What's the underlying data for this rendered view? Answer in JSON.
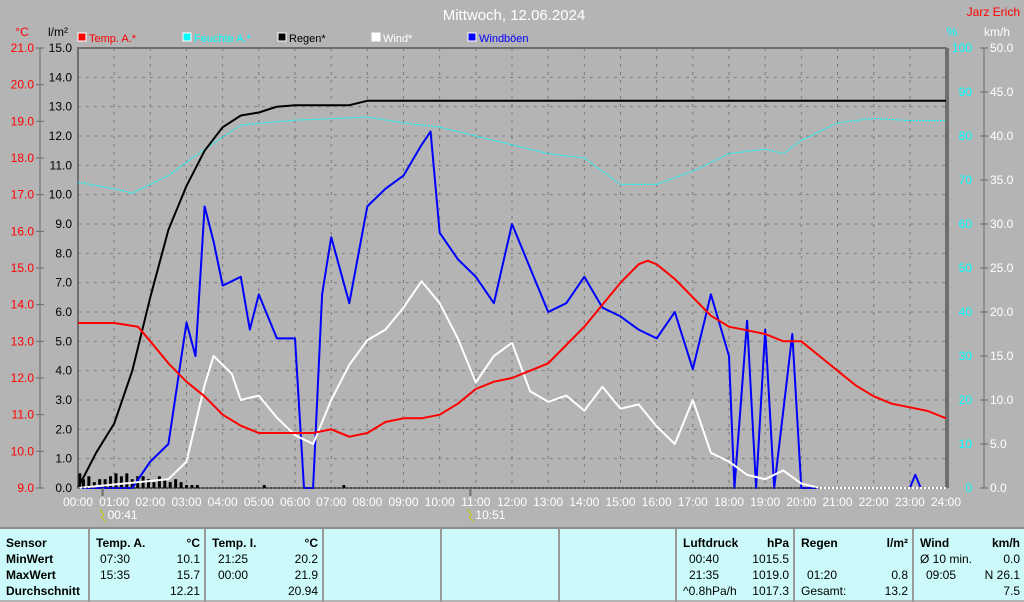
{
  "title": "Mittwoch, 12.06.2024",
  "author": "Jarz Erich",
  "colors": {
    "temp": "#ff0000",
    "humidity": "#00ffff",
    "rain": "#000000",
    "wind": "#ffffff",
    "gust": "#0000ff"
  },
  "chart_data": {
    "type": "line",
    "title": "Mittwoch, 12.06.2024",
    "legend": [
      "Temp. A.*",
      "Feuchte A.*",
      "Regen*",
      "Wind*",
      "Windböen"
    ],
    "legend_position": "top",
    "axes": {
      "temp": {
        "unit": "°C",
        "range": [
          9,
          21
        ],
        "ticks": [
          "21.0",
          "20.0",
          "19.0",
          "18.0",
          "17.0",
          "16.0",
          "15.0",
          "14.0",
          "13.0",
          "12.0",
          "11.0",
          "10.0",
          "9.0"
        ]
      },
      "rain": {
        "unit": "l/m²",
        "range": [
          0,
          15
        ],
        "ticks": [
          "15.0",
          "14.0",
          "13.0",
          "12.0",
          "11.0",
          "10.0",
          "9.0",
          "8.0",
          "7.0",
          "6.0",
          "5.0",
          "4.0",
          "3.0",
          "2.0",
          "1.0",
          "0.0"
        ]
      },
      "humidity": {
        "unit": "%",
        "range": [
          0,
          100
        ],
        "ticks": [
          "100",
          "90",
          "80",
          "70",
          "60",
          "50",
          "40",
          "30",
          "20",
          "10",
          "0"
        ]
      },
      "wind": {
        "unit": "km/h",
        "range": [
          0,
          50
        ],
        "ticks": [
          "50.0",
          "45.0",
          "40.0",
          "35.0",
          "30.0",
          "25.0",
          "20.0",
          "15.0",
          "10.0",
          "5.0",
          "0.0"
        ]
      },
      "x": {
        "range": [
          0,
          24
        ],
        "ticks": [
          "00:00",
          "01:00",
          "02:00",
          "03:00",
          "04:00",
          "05:00",
          "06:00",
          "07:00",
          "08:00",
          "09:00",
          "10:00",
          "11:00",
          "12:00",
          "13:00",
          "14:00",
          "15:00",
          "16:00",
          "17:00",
          "18:00",
          "19:00",
          "20:00",
          "21:00",
          "22:00",
          "23:00",
          "24:00"
        ]
      }
    },
    "markers": [
      {
        "label": "00:41",
        "x": 0.68
      },
      {
        "label": "10:51",
        "x": 10.85
      }
    ],
    "series": [
      {
        "name": "Temp. A.*",
        "axis": "temp",
        "color": "#ff0000",
        "points": [
          [
            0,
            13.5
          ],
          [
            1,
            13.5
          ],
          [
            1.66,
            13.4
          ],
          [
            2,
            13.0
          ],
          [
            2.5,
            12.4
          ],
          [
            3,
            11.9
          ],
          [
            3.5,
            11.5
          ],
          [
            4,
            11.0
          ],
          [
            4.5,
            10.7
          ],
          [
            5,
            10.5
          ],
          [
            6,
            10.5
          ],
          [
            6.5,
            10.5
          ],
          [
            7,
            10.6
          ],
          [
            7.5,
            10.4
          ],
          [
            8,
            10.5
          ],
          [
            8.5,
            10.8
          ],
          [
            9,
            10.9
          ],
          [
            9.5,
            10.9
          ],
          [
            10,
            11.0
          ],
          [
            10.5,
            11.3
          ],
          [
            11,
            11.7
          ],
          [
            11.5,
            11.9
          ],
          [
            12,
            12.0
          ],
          [
            12.5,
            12.2
          ],
          [
            13,
            12.4
          ],
          [
            13.5,
            12.9
          ],
          [
            14,
            13.4
          ],
          [
            14.5,
            14.0
          ],
          [
            15,
            14.6
          ],
          [
            15.5,
            15.1
          ],
          [
            15.75,
            15.2
          ],
          [
            16,
            15.1
          ],
          [
            16.5,
            14.7
          ],
          [
            17,
            14.2
          ],
          [
            17.5,
            13.7
          ],
          [
            18,
            13.4
          ],
          [
            18.5,
            13.3
          ],
          [
            19,
            13.2
          ],
          [
            19.5,
            13.0
          ],
          [
            20,
            13.0
          ],
          [
            20.5,
            12.6
          ],
          [
            21,
            12.2
          ],
          [
            21.5,
            11.8
          ],
          [
            22,
            11.5
          ],
          [
            22.5,
            11.3
          ],
          [
            23,
            11.2
          ],
          [
            23.5,
            11.1
          ],
          [
            24,
            10.9
          ]
        ]
      },
      {
        "name": "Feuchte A.*",
        "axis": "humidity",
        "color": "#00ffff",
        "points": [
          [
            0,
            69.5
          ],
          [
            1,
            68
          ],
          [
            1.5,
            67
          ],
          [
            2.5,
            71
          ],
          [
            3.5,
            77
          ],
          [
            4.5,
            82.5
          ],
          [
            6,
            83.6
          ],
          [
            8,
            84.3
          ],
          [
            9,
            83
          ],
          [
            10,
            82
          ],
          [
            11,
            80
          ],
          [
            12,
            78
          ],
          [
            13,
            76
          ],
          [
            14,
            75
          ],
          [
            15,
            69
          ],
          [
            16,
            69
          ],
          [
            17,
            72
          ],
          [
            18,
            76
          ],
          [
            19,
            77
          ],
          [
            19.5,
            76
          ],
          [
            20,
            79
          ],
          [
            21,
            83
          ],
          [
            22,
            84
          ],
          [
            23,
            83.5
          ],
          [
            24,
            83.5
          ]
        ]
      },
      {
        "name": "Regen*",
        "axis": "rain",
        "color": "#000000",
        "points": [
          [
            0,
            0
          ],
          [
            0.5,
            1.2
          ],
          [
            1,
            2.2
          ],
          [
            1.5,
            4.0
          ],
          [
            2,
            6.5
          ],
          [
            2.5,
            8.8
          ],
          [
            3,
            10.3
          ],
          [
            3.5,
            11.5
          ],
          [
            4,
            12.3
          ],
          [
            4.5,
            12.7
          ],
          [
            5,
            12.8
          ],
          [
            5.5,
            13.0
          ],
          [
            6,
            13.05
          ],
          [
            7.5,
            13.05
          ],
          [
            8,
            13.2
          ],
          [
            24,
            13.2
          ]
        ]
      },
      {
        "name": "Wind*",
        "axis": "wind",
        "color": "#ffffff",
        "points": [
          [
            0,
            0
          ],
          [
            2.5,
            1
          ],
          [
            3,
            3
          ],
          [
            3.5,
            11.7
          ],
          [
            3.75,
            15
          ],
          [
            4.25,
            13
          ],
          [
            4.5,
            10
          ],
          [
            5,
            10.5
          ],
          [
            5.5,
            8
          ],
          [
            6,
            6
          ],
          [
            6.5,
            5
          ],
          [
            7,
            10
          ],
          [
            7.5,
            14
          ],
          [
            8,
            16.8
          ],
          [
            8.5,
            18
          ],
          [
            9,
            20.5
          ],
          [
            9.5,
            23.5
          ],
          [
            10,
            21
          ],
          [
            10.5,
            17
          ],
          [
            11,
            12
          ],
          [
            11.5,
            15
          ],
          [
            12,
            16.5
          ],
          [
            12.5,
            11
          ],
          [
            13,
            9.8
          ],
          [
            13.5,
            10.5
          ],
          [
            14,
            8.8
          ],
          [
            14.5,
            11.5
          ],
          [
            15,
            9
          ],
          [
            15.5,
            9.5
          ],
          [
            16,
            7
          ],
          [
            16.5,
            5
          ],
          [
            17,
            10
          ],
          [
            17.5,
            4
          ],
          [
            18,
            3
          ],
          [
            18.5,
            1.5
          ],
          [
            19,
            1
          ],
          [
            19.5,
            2
          ],
          [
            20,
            0.5
          ],
          [
            20.5,
            0
          ],
          [
            24,
            0
          ]
        ]
      },
      {
        "name": "Windböen",
        "axis": "wind",
        "color": "#0000ff",
        "points": [
          [
            0,
            0
          ],
          [
            1.5,
            0
          ],
          [
            2,
            3
          ],
          [
            2.5,
            5
          ],
          [
            3,
            18.8
          ],
          [
            3.25,
            15
          ],
          [
            3.5,
            32
          ],
          [
            3.75,
            28
          ],
          [
            4,
            23
          ],
          [
            4.5,
            24
          ],
          [
            4.75,
            18
          ],
          [
            5,
            22
          ],
          [
            5.5,
            17
          ],
          [
            6,
            17
          ],
          [
            6.25,
            0
          ],
          [
            6.5,
            0
          ],
          [
            6.75,
            22
          ],
          [
            7,
            28.5
          ],
          [
            7.5,
            21
          ],
          [
            8,
            32
          ],
          [
            8.5,
            34
          ],
          [
            9,
            35.5
          ],
          [
            9.5,
            39
          ],
          [
            9.75,
            40.5
          ],
          [
            10,
            29
          ],
          [
            10.5,
            26
          ],
          [
            11,
            24
          ],
          [
            11.5,
            21
          ],
          [
            12,
            30
          ],
          [
            12.5,
            25
          ],
          [
            13,
            20
          ],
          [
            13.5,
            21
          ],
          [
            14,
            24
          ],
          [
            14.5,
            20.5
          ],
          [
            15,
            19.5
          ],
          [
            15.5,
            18
          ],
          [
            16,
            17
          ],
          [
            16.5,
            20
          ],
          [
            17,
            13.5
          ],
          [
            17.5,
            22
          ],
          [
            18,
            15
          ],
          [
            18.15,
            0
          ],
          [
            18.5,
            19
          ],
          [
            18.75,
            0
          ],
          [
            19,
            18
          ],
          [
            19.25,
            0
          ],
          [
            19.75,
            17.5
          ],
          [
            20,
            0
          ],
          [
            23,
            0
          ],
          [
            23.15,
            1.5
          ],
          [
            23.3,
            0
          ],
          [
            24,
            0
          ]
        ]
      }
    ],
    "rain_bars": {
      "axis": "rain",
      "x": [
        0.05,
        0.15,
        0.3,
        0.45,
        0.6,
        0.75,
        0.9,
        1.05,
        1.2,
        1.35,
        1.5,
        1.65,
        1.8,
        1.95,
        2.1,
        2.25,
        2.4,
        2.55,
        2.7,
        2.85,
        3.0,
        3.15,
        3.3,
        5.15,
        7.35
      ],
      "values": [
        0.5,
        0.3,
        0.4,
        0.2,
        0.3,
        0.3,
        0.4,
        0.5,
        0.4,
        0.5,
        0.3,
        0.4,
        0.4,
        0.3,
        0.2,
        0.4,
        0.3,
        0.2,
        0.3,
        0.2,
        0.1,
        0.1,
        0.1,
        0.1,
        0.1
      ]
    }
  },
  "table": {
    "sensor": {
      "h": "Sensor",
      "r1": "MinWert",
      "r2": "MaxWert",
      "r3": "Durchschnitt"
    },
    "tempA": {
      "h": "Temp. A.",
      "u": "°C",
      "r1t": "07:30",
      "r1v": "10.1",
      "r2t": "15:35",
      "r2v": "15.7",
      "r3v": "12.21"
    },
    "tempI": {
      "h": "Temp. I.",
      "u": "°C",
      "r1t": "21:25",
      "r1v": "20.2",
      "r2t": "00:00",
      "r2v": "21.9",
      "r3v": "20.94"
    },
    "press": {
      "h": "Luftdruck",
      "u": "hPa",
      "r1t": "00:40",
      "r1v": "1015.5",
      "r2t": "21:35",
      "r2v": "1019.0",
      "r3t": "^0.8hPa/h",
      "r3v": "1017.3"
    },
    "rain": {
      "h": "Regen",
      "u": "l/m²",
      "r2t": "01:20",
      "r2v": "0.8",
      "r3t": "Gesamt:",
      "r3v": "13.2"
    },
    "wind": {
      "h": "Wind",
      "u": "km/h",
      "r1t": "Ø 10 min.",
      "r1v": "0.0",
      "r2t": "09:05",
      "r2v": "N 26.1",
      "r3v": "7.5"
    }
  }
}
